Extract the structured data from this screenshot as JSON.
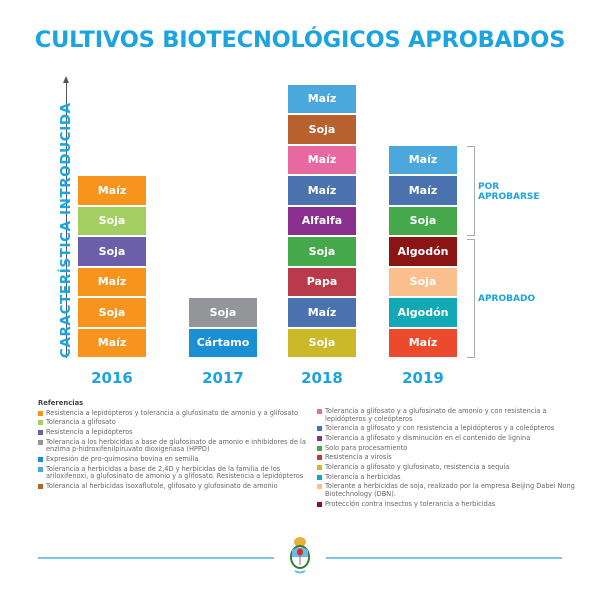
{
  "title": "CULTIVOS BIOTECNOLÓGICOS APROBADOS",
  "axis_label": "CARACTERÍSTICA INTRODUCIDA",
  "bars": [
    {
      "year": "2016",
      "blocks": [
        {
          "label": "Maíz",
          "color": "#f7941d"
        },
        {
          "label": "Soja",
          "color": "#f7941d"
        },
        {
          "label": "Maíz",
          "color": "#f7941d"
        },
        {
          "label": "Soja",
          "color": "#6a5fa8"
        },
        {
          "label": "Soja",
          "color": "#a3cf62"
        },
        {
          "label": "Maíz",
          "color": "#f7941d"
        }
      ]
    },
    {
      "year": "2017",
      "blocks": [
        {
          "label": "Cártamo",
          "color": "#1b8fd3"
        },
        {
          "label": "Soja",
          "color": "#939598"
        }
      ]
    },
    {
      "year": "2018",
      "blocks": [
        {
          "label": "Soja",
          "color": "#cbb92a"
        },
        {
          "label": "Maíz",
          "color": "#4a72ae"
        },
        {
          "label": "Papa",
          "color": "#b83a4b"
        },
        {
          "label": "Soja",
          "color": "#45a84a"
        },
        {
          "label": "Alfalfa",
          "color": "#8a2f8e"
        },
        {
          "label": "Maíz",
          "color": "#4a72ae"
        },
        {
          "label": "Maíz",
          "color": "#e868a2"
        },
        {
          "label": "Soja",
          "color": "#b8602e"
        },
        {
          "label": "Maíz",
          "color": "#4aa8dd"
        }
      ]
    },
    {
      "year": "2019",
      "blocks": [
        {
          "label": "Maíz",
          "color": "#ec4a2d"
        },
        {
          "label": "Algodón",
          "color": "#10a9b5"
        },
        {
          "label": "Soja",
          "color": "#fbbf8e"
        },
        {
          "label": "Algodón",
          "color": "#8b1414"
        },
        {
          "label": "Soja",
          "color": "#45a84a"
        },
        {
          "label": "Maíz",
          "color": "#4a72ae"
        },
        {
          "label": "Maíz",
          "color": "#4aa8dd"
        }
      ]
    }
  ],
  "status": {
    "pending_line1": "POR",
    "pending_line2": "APROBARSE",
    "approved": "APROBADO"
  },
  "legend": {
    "title": "Referencias",
    "left": [
      {
        "text": "Resistencia a lepidópteros y tolerancia a glufosinato de amonio y a glifosato",
        "color": "#f7941d"
      },
      {
        "text": "Tolerancia a glifosato",
        "color": "#a3cf62"
      },
      {
        "text": "Resistencia a lepidópteros",
        "color": "#6a5fa8"
      },
      {
        "text": "Tolerancia a los herbicidas a base de glufosinato de amonio e inhibidores de la enzima p-hidroxifenilpiruvato dioxigenasa (HPPD)",
        "color": "#939598"
      },
      {
        "text": "Expresión de pro-quimosina bovina en semilla",
        "color": "#1b8fd3"
      },
      {
        "text": "Tolerancia a herbicidas a base de 2,4D y herbicidas de la familia de los ariloxifenoxi, a glufosinato de amonio y a glifosato. Resistencia a lepidópteros",
        "color": "#4aa8dd"
      },
      {
        "text": "Tolerancia al herbicidas isoxaflutole, glifosato y glufosinato de amonio",
        "color": "#b8602e"
      }
    ],
    "right": [
      {
        "text": "Tolerancia a glifosato y a glufosinato de amonio y con resistencia a lepidópteros y coleópteros",
        "color": "#e868a2"
      },
      {
        "text": "Tolerancia a glifosato y con resistencia a lepidópteros y a coleópteros",
        "color": "#4a72ae"
      },
      {
        "text": "Tolerancia a glifosato y disminución en el contenido de lignina",
        "color": "#8a2f8e"
      },
      {
        "text": "Solo para procesamiento",
        "color": "#45a84a"
      },
      {
        "text": "Resistencia a virosis",
        "color": "#b83a4b"
      },
      {
        "text": "Tolerancia a glifosato y glufosinato, resistencia a sequía",
        "color": "#cbb92a"
      },
      {
        "text": "Tolerancia a herbicidas",
        "color": "#10a9b5"
      },
      {
        "text": "Tolerante a herbicidas de soja, realizado por la empresa Beijing Dabei Nong Biotechnology (DBN).",
        "color": "#fbbf8e"
      },
      {
        "text": "Protección contra insectos y tolerancia a herbicidas",
        "color": "#8b1414"
      }
    ]
  }
}
